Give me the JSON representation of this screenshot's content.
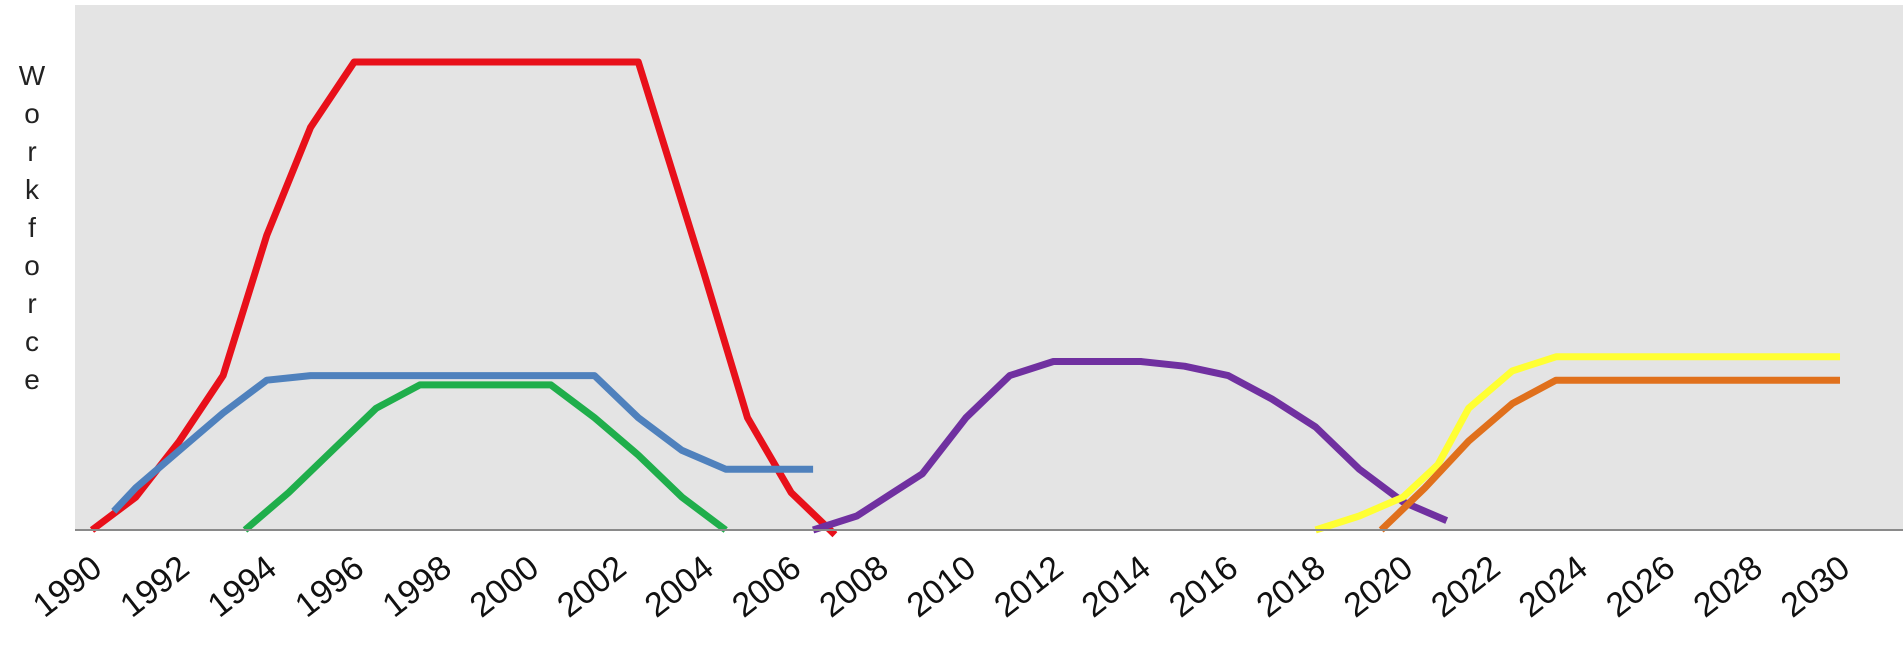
{
  "chart_data": {
    "type": "line",
    "title": "",
    "xlabel": "",
    "ylabel": "Workforce",
    "x_ticks": [
      1990,
      1992,
      1994,
      1996,
      1998,
      2000,
      2002,
      2004,
      2006,
      2008,
      2010,
      2012,
      2014,
      2016,
      2018,
      2020,
      2022,
      2024,
      2026,
      2028,
      2030
    ],
    "xlim": [
      1990,
      2034
    ],
    "ylim": [
      0,
      100
    ],
    "grid": false,
    "legend": "none",
    "plot_background": "#e4e4e4",
    "axis_color": "#8a8a8a",
    "series": [
      {
        "color": "#e8101a",
        "points": [
          [
            1990,
            0
          ],
          [
            1991,
            7
          ],
          [
            1992,
            19
          ],
          [
            1993,
            33
          ],
          [
            1994,
            63
          ],
          [
            1995,
            86
          ],
          [
            1996,
            100
          ],
          [
            2002.5,
            100
          ],
          [
            2004,
            55
          ],
          [
            2005,
            24
          ],
          [
            2006,
            8
          ],
          [
            2007,
            -1
          ]
        ]
      },
      {
        "color": "#4f81bd",
        "points": [
          [
            1990.5,
            4
          ],
          [
            1991,
            9
          ],
          [
            1992,
            17
          ],
          [
            1993,
            25
          ],
          [
            1994,
            32
          ],
          [
            1995,
            33
          ],
          [
            1996,
            33
          ],
          [
            2001.5,
            33
          ],
          [
            2002.5,
            24
          ],
          [
            2003.5,
            17
          ],
          [
            2004.5,
            13
          ],
          [
            2006.5,
            13
          ]
        ]
      },
      {
        "color": "#1fae4b",
        "points": [
          [
            1993.5,
            0
          ],
          [
            1994.5,
            8
          ],
          [
            1995.5,
            17
          ],
          [
            1996.5,
            26
          ],
          [
            1997.5,
            31
          ],
          [
            2000.5,
            31
          ],
          [
            2001.5,
            24
          ],
          [
            2002.5,
            16
          ],
          [
            2003.5,
            7
          ],
          [
            2004.5,
            0
          ]
        ]
      },
      {
        "color": "#7030a0",
        "points": [
          [
            2006.5,
            0
          ],
          [
            2007.5,
            3
          ],
          [
            2008,
            6
          ],
          [
            2009,
            12
          ],
          [
            2010,
            24
          ],
          [
            2011,
            33
          ],
          [
            2012,
            36
          ],
          [
            2014,
            36
          ],
          [
            2015,
            35
          ],
          [
            2016,
            33
          ],
          [
            2017,
            28
          ],
          [
            2018,
            22
          ],
          [
            2019,
            13
          ],
          [
            2020,
            6
          ],
          [
            2021,
            2
          ]
        ]
      },
      {
        "color": "#ffff33",
        "points": [
          [
            2018,
            0
          ],
          [
            2019,
            3
          ],
          [
            2020,
            7
          ],
          [
            2020.8,
            14
          ],
          [
            2021.5,
            26
          ],
          [
            2022.5,
            34
          ],
          [
            2023.5,
            37
          ],
          [
            2030,
            37
          ]
        ]
      },
      {
        "color": "#e0701c",
        "points": [
          [
            2019.5,
            0
          ],
          [
            2020.5,
            9
          ],
          [
            2021.5,
            19
          ],
          [
            2022.5,
            27
          ],
          [
            2023.5,
            32
          ],
          [
            2030,
            32
          ]
        ]
      }
    ]
  }
}
